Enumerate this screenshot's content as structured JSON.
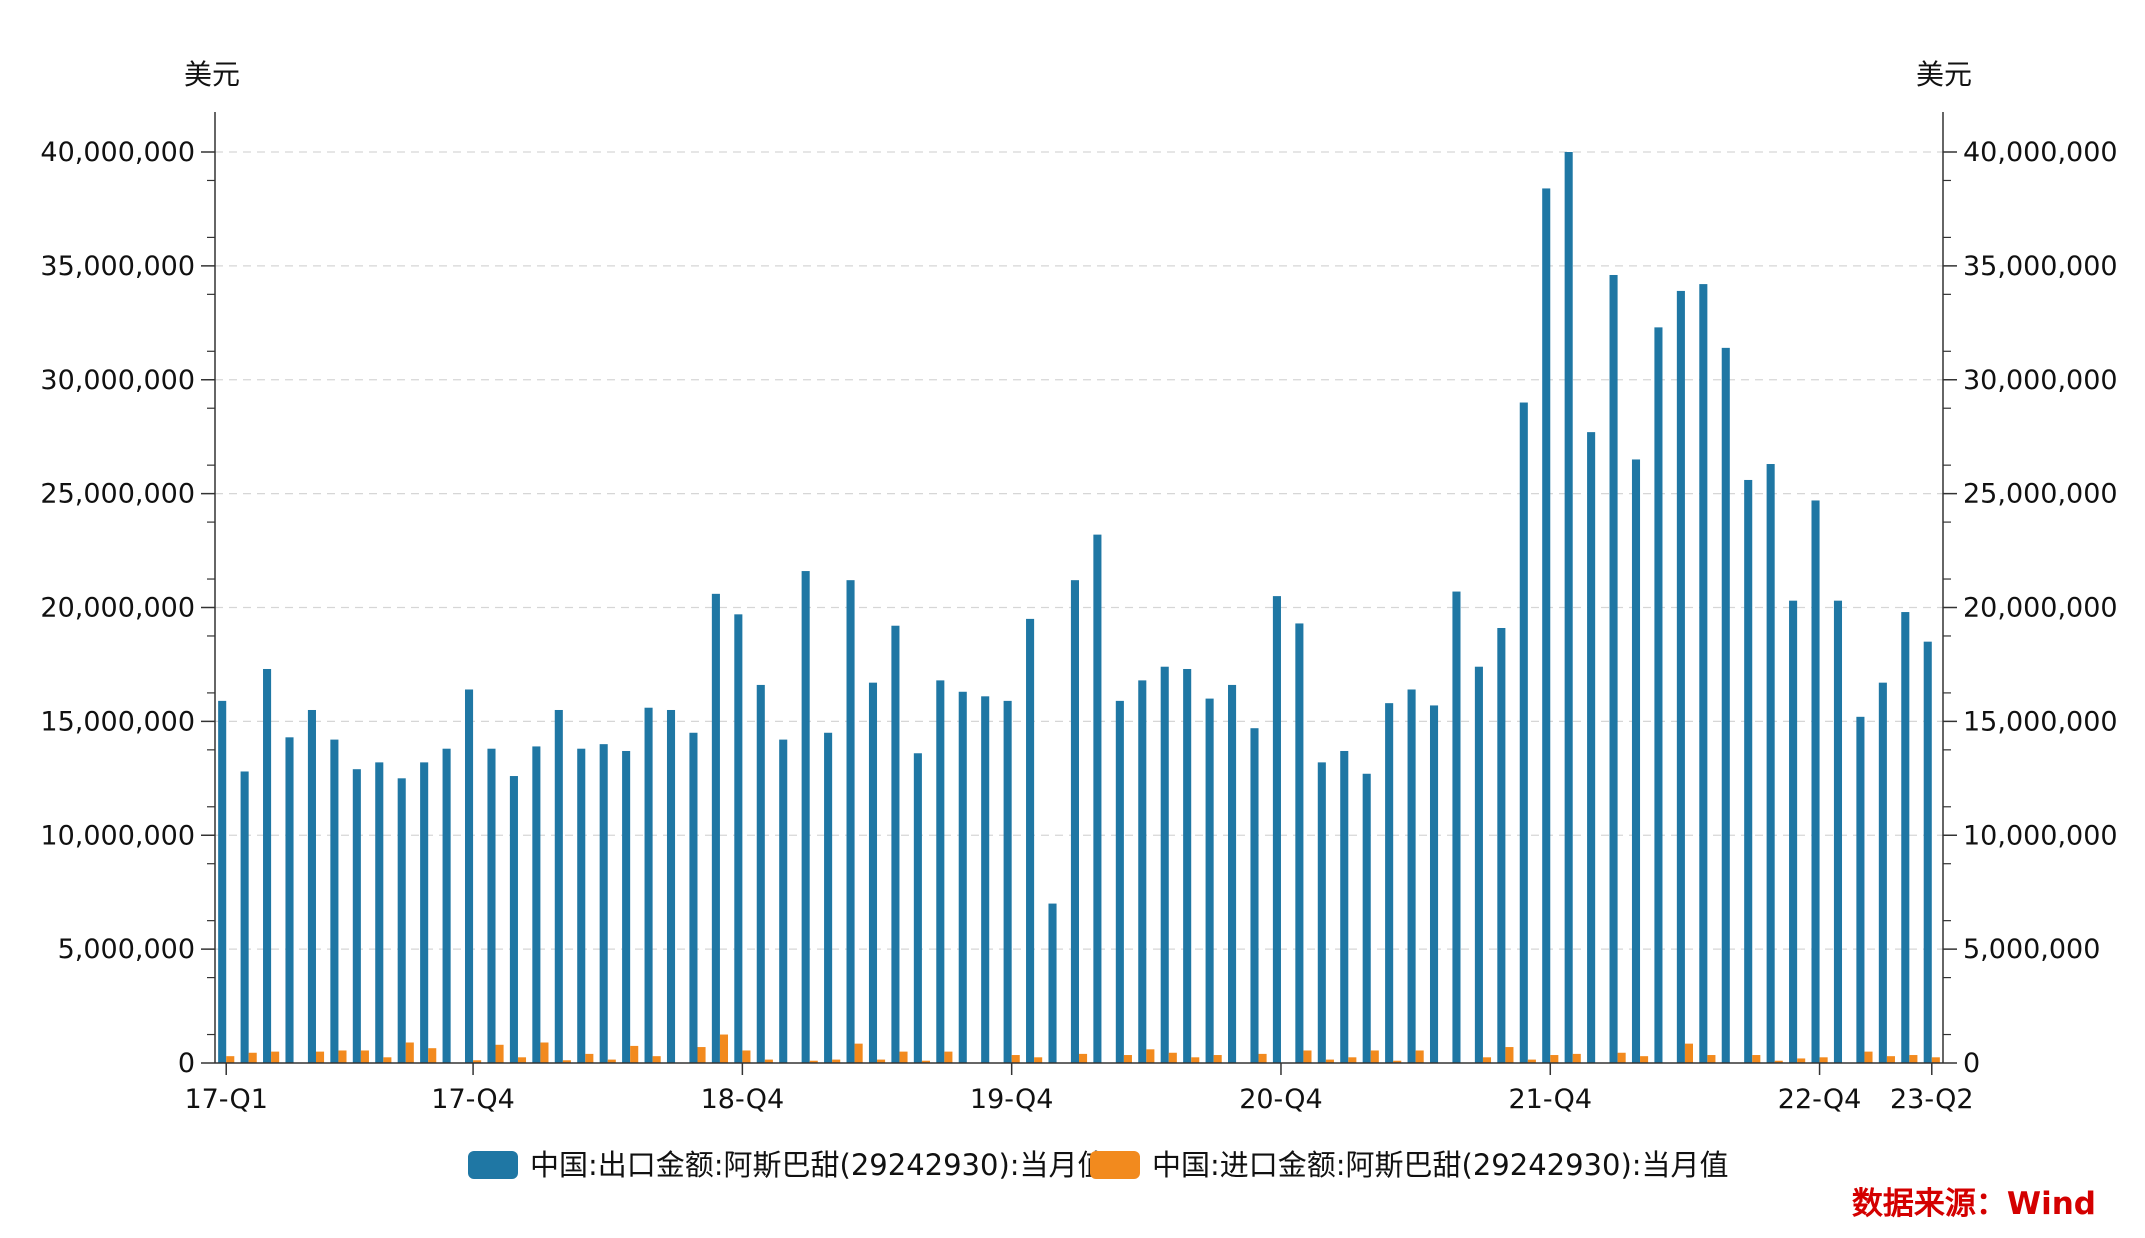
{
  "chart_data": {
    "type": "bar",
    "y_unit_left": "美元",
    "y_unit_right": "美元",
    "ylim": [
      0,
      40000000
    ],
    "y_ticks": [
      "0",
      "5,000,000",
      "10,000,000",
      "15,000,000",
      "20,000,000",
      "25,000,000",
      "30,000,000",
      "35,000,000",
      "40,000,000"
    ],
    "y_tick_values": [
      0,
      5000000,
      10000000,
      15000000,
      20000000,
      25000000,
      30000000,
      35000000,
      40000000
    ],
    "grid": true,
    "legend_position": "bottom-center",
    "categories": [
      "2017-01",
      "2017-02",
      "2017-03",
      "2017-04",
      "2017-05",
      "2017-06",
      "2017-07",
      "2017-08",
      "2017-09",
      "2017-10",
      "2017-11",
      "2017-12",
      "2018-01",
      "2018-02",
      "2018-03",
      "2018-04",
      "2018-05",
      "2018-06",
      "2018-07",
      "2018-08",
      "2018-09",
      "2018-10",
      "2018-11",
      "2018-12",
      "2019-01",
      "2019-02",
      "2019-03",
      "2019-04",
      "2019-05",
      "2019-06",
      "2019-07",
      "2019-08",
      "2019-09",
      "2019-10",
      "2019-11",
      "2019-12",
      "2020-01",
      "2020-02",
      "2020-03",
      "2020-04",
      "2020-05",
      "2020-06",
      "2020-07",
      "2020-08",
      "2020-09",
      "2020-10",
      "2020-11",
      "2020-12",
      "2021-01",
      "2021-02",
      "2021-03",
      "2021-04",
      "2021-05",
      "2021-06",
      "2021-07",
      "2021-08",
      "2021-09",
      "2021-10",
      "2021-11",
      "2021-12",
      "2022-01",
      "2022-02",
      "2022-03",
      "2022-04",
      "2022-05",
      "2022-06",
      "2022-07",
      "2022-08",
      "2022-09",
      "2022-10",
      "2022-11",
      "2022-12",
      "2023-01",
      "2023-02",
      "2023-03",
      "2023-04",
      "2023-05"
    ],
    "x_tick_labels": [
      {
        "index": 0,
        "label": "17-Q1"
      },
      {
        "index": 11,
        "label": "17-Q4"
      },
      {
        "index": 23,
        "label": "18-Q4"
      },
      {
        "index": 35,
        "label": "19-Q4"
      },
      {
        "index": 47,
        "label": "20-Q4"
      },
      {
        "index": 59,
        "label": "21-Q4"
      },
      {
        "index": 71,
        "label": "22-Q4"
      },
      {
        "index": 76,
        "label": "23-Q2"
      }
    ],
    "series": [
      {
        "name": "中国:出口金额:阿斯巴甜(29242930):当月值",
        "color": "#1f77a4",
        "values": [
          15900000,
          12800000,
          17300000,
          14300000,
          15500000,
          14200000,
          12900000,
          13200000,
          12500000,
          13200000,
          13800000,
          16400000,
          13800000,
          12600000,
          13900000,
          15500000,
          13800000,
          14000000,
          13700000,
          15600000,
          15500000,
          14500000,
          20600000,
          19700000,
          16600000,
          14200000,
          21600000,
          14500000,
          21200000,
          16700000,
          19200000,
          13600000,
          16800000,
          16300000,
          16100000,
          15900000,
          19500000,
          7000000,
          21200000,
          23200000,
          15900000,
          16800000,
          17400000,
          17300000,
          16000000,
          16600000,
          14700000,
          20500000,
          19300000,
          13200000,
          13700000,
          12700000,
          15800000,
          16400000,
          15700000,
          20700000,
          17400000,
          19100000,
          29000000,
          38400000,
          40000000,
          27700000,
          34600000,
          26500000,
          32300000,
          33900000,
          34200000,
          31400000,
          25600000,
          26300000,
          20300000,
          24700000,
          20300000,
          15200000,
          16700000,
          19800000,
          18500000
        ]
      },
      {
        "name": "中国:进口金额:阿斯巴甜(29242930):当月值",
        "color": "#f28a1e",
        "values": [
          300000,
          450000,
          500000,
          0,
          500000,
          550000,
          550000,
          250000,
          900000,
          650000,
          0,
          120000,
          800000,
          250000,
          900000,
          120000,
          400000,
          150000,
          750000,
          300000,
          0,
          700000,
          1250000,
          550000,
          150000,
          0,
          100000,
          150000,
          850000,
          150000,
          500000,
          100000,
          500000,
          0,
          0,
          350000,
          250000,
          0,
          400000,
          0,
          350000,
          600000,
          450000,
          250000,
          350000,
          0,
          400000,
          0,
          550000,
          150000,
          250000,
          550000,
          100000,
          550000,
          0,
          0,
          250000,
          700000,
          150000,
          350000,
          400000,
          0,
          450000,
          300000,
          0,
          850000,
          350000,
          0,
          350000,
          100000,
          200000,
          250000,
          0,
          500000,
          300000,
          350000,
          250000
        ]
      }
    ],
    "source": "数据来源：Wind"
  }
}
